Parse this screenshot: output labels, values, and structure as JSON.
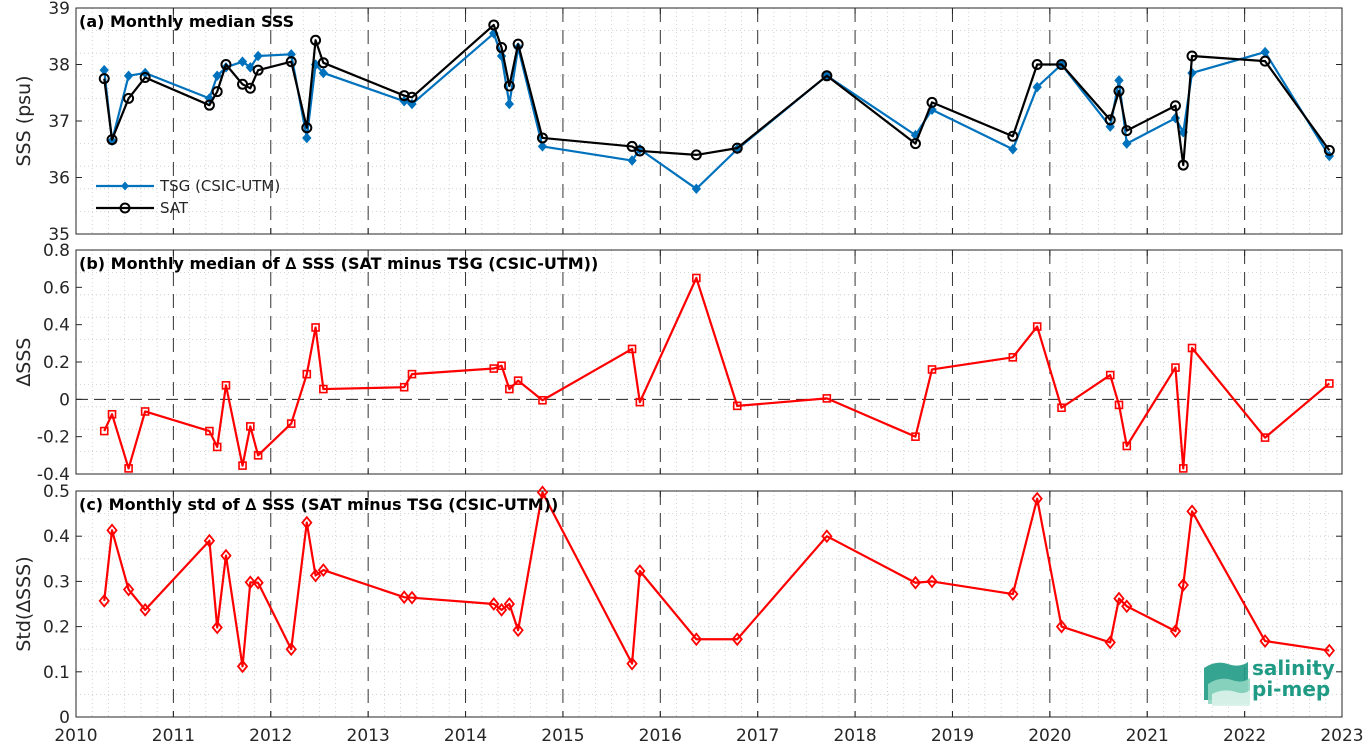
{
  "colors": {
    "tsg": "#0072BD",
    "sat": "#000000",
    "delta": "#ff0000",
    "logo": "#1f9a84"
  },
  "x_axis": {
    "ticks": [
      2010,
      2011,
      2012,
      2013,
      2014,
      2015,
      2016,
      2017,
      2018,
      2019,
      2020,
      2021,
      2022,
      2023
    ],
    "xlim": [
      2010,
      2023
    ]
  },
  "logo": {
    "line1": "salinity",
    "line2": "pi-mep"
  },
  "chart_data": [
    {
      "type": "line",
      "title": "(a) Monthly median SSS",
      "ylabel": "SSS (psu)",
      "ylim": [
        35,
        39
      ],
      "yticks": [
        35,
        36,
        37,
        38,
        39
      ],
      "grid": true,
      "legend": "bottom-left",
      "series": [
        {
          "name": "TSG (CSIC-UTM)",
          "color": "#0072BD",
          "marker": "diamond",
          "x": [
            2010.29,
            2010.37,
            2010.54,
            2010.71,
            2011.37,
            2011.45,
            2011.54,
            2011.71,
            2011.79,
            2011.87,
            2012.21,
            2012.37,
            2012.46,
            2012.54,
            2013.37,
            2013.45,
            2014.29,
            2014.37,
            2014.45,
            2014.54,
            2014.79,
            2015.71,
            2015.79,
            2016.37,
            2016.79,
            2017.71,
            2018.62,
            2018.79,
            2019.62,
            2019.87,
            2020.12,
            2020.62,
            2020.71,
            2020.79,
            2021.29,
            2021.37,
            2021.46,
            2022.21,
            2022.87
          ],
          "y": [
            37.9,
            36.65,
            37.8,
            37.85,
            37.4,
            37.8,
            37.95,
            38.05,
            37.95,
            38.15,
            38.18,
            36.7,
            38.0,
            37.85,
            37.35,
            37.3,
            38.55,
            38.15,
            37.3,
            38.3,
            36.55,
            36.3,
            36.5,
            35.8,
            36.5,
            37.8,
            36.75,
            37.2,
            36.5,
            37.6,
            38.0,
            36.9,
            37.72,
            36.6,
            37.05,
            36.8,
            37.85,
            38.22,
            36.38
          ]
        },
        {
          "name": "SAT",
          "color": "#000000",
          "marker": "circle",
          "x": [
            2010.29,
            2010.37,
            2010.54,
            2010.71,
            2011.37,
            2011.45,
            2011.54,
            2011.71,
            2011.79,
            2011.87,
            2012.21,
            2012.37,
            2012.46,
            2012.54,
            2013.37,
            2013.45,
            2014.29,
            2014.37,
            2014.45,
            2014.54,
            2014.79,
            2015.71,
            2015.79,
            2016.37,
            2016.79,
            2017.71,
            2018.62,
            2018.79,
            2019.62,
            2019.87,
            2020.12,
            2020.62,
            2020.71,
            2020.79,
            2021.29,
            2021.37,
            2021.46,
            2022.21,
            2022.87
          ],
          "y": [
            37.75,
            36.67,
            37.4,
            37.77,
            37.28,
            37.52,
            38.0,
            37.65,
            37.58,
            37.9,
            38.05,
            36.88,
            38.43,
            38.03,
            37.45,
            37.42,
            38.7,
            38.3,
            37.62,
            38.36,
            36.7,
            36.55,
            36.47,
            36.4,
            36.52,
            37.8,
            36.6,
            37.33,
            36.73,
            38.0,
            38.0,
            37.02,
            37.53,
            36.83,
            37.27,
            36.22,
            38.15,
            38.06,
            36.48
          ]
        }
      ]
    },
    {
      "type": "line",
      "title": "(b) Monthly median of ∆ SSS (SAT minus TSG (CSIC-UTM))",
      "ylabel": "∆SSS",
      "ylim": [
        -0.4,
        0.8
      ],
      "yticks": [
        -0.4,
        -0.2,
        0,
        0.2,
        0.4,
        0.6,
        0.8
      ],
      "ytick_labels": [
        "-0.4",
        "-0.2",
        "0",
        "0.2",
        "0.4",
        "0.6",
        "0.8"
      ],
      "zero_line": true,
      "grid": true,
      "series": [
        {
          "color": "#ff0000",
          "marker": "square",
          "x": [
            2010.29,
            2010.37,
            2010.54,
            2010.71,
            2011.37,
            2011.45,
            2011.54,
            2011.71,
            2011.79,
            2011.87,
            2012.21,
            2012.37,
            2012.46,
            2012.54,
            2013.37,
            2013.45,
            2014.29,
            2014.37,
            2014.45,
            2014.54,
            2014.79,
            2015.71,
            2015.79,
            2016.37,
            2016.79,
            2017.71,
            2018.62,
            2018.79,
            2019.62,
            2019.87,
            2020.12,
            2020.62,
            2020.71,
            2020.79,
            2021.29,
            2021.37,
            2021.46,
            2022.21,
            2022.87
          ],
          "y": [
            -0.17,
            -0.08,
            -0.37,
            -0.065,
            -0.17,
            -0.255,
            0.075,
            -0.355,
            -0.145,
            -0.3,
            -0.13,
            0.135,
            0.385,
            0.055,
            0.065,
            0.135,
            0.165,
            0.18,
            0.055,
            0.1,
            -0.005,
            0.27,
            -0.015,
            0.65,
            -0.035,
            0.005,
            -0.2,
            0.16,
            0.225,
            0.39,
            -0.045,
            0.13,
            -0.03,
            -0.25,
            0.17,
            -0.37,
            0.275,
            -0.205,
            0.085
          ]
        }
      ]
    },
    {
      "type": "line",
      "title": "(c) Monthly std of ∆ SSS (SAT minus TSG (CSIC-UTM))",
      "ylabel": "Std(∆SSS)",
      "ylim": [
        0,
        0.5
      ],
      "yticks": [
        0,
        0.1,
        0.2,
        0.3,
        0.4,
        0.5
      ],
      "ytick_labels": [
        "0",
        "0.1",
        "0.2",
        "0.3",
        "0.4",
        "0.5"
      ],
      "grid": true,
      "series": [
        {
          "color": "#ff0000",
          "marker": "diamond-open",
          "x": [
            2010.29,
            2010.37,
            2010.54,
            2010.71,
            2011.37,
            2011.45,
            2011.54,
            2011.71,
            2011.79,
            2011.87,
            2012.21,
            2012.37,
            2012.46,
            2012.54,
            2013.37,
            2013.45,
            2014.29,
            2014.37,
            2014.45,
            2014.54,
            2014.79,
            2015.71,
            2015.79,
            2016.37,
            2016.79,
            2017.71,
            2018.62,
            2018.79,
            2019.62,
            2019.87,
            2020.12,
            2020.62,
            2020.71,
            2020.79,
            2021.29,
            2021.37,
            2021.46,
            2022.21,
            2022.87
          ],
          "y": [
            0.257,
            0.413,
            0.282,
            0.237,
            0.39,
            0.198,
            0.357,
            0.112,
            0.298,
            0.297,
            0.15,
            0.43,
            0.313,
            0.325,
            0.265,
            0.264,
            0.25,
            0.237,
            0.25,
            0.192,
            0.497,
            0.118,
            0.323,
            0.172,
            0.172,
            0.4,
            0.297,
            0.3,
            0.272,
            0.483,
            0.2,
            0.165,
            0.262,
            0.245,
            0.19,
            0.292,
            0.455,
            0.168,
            0.147
          ]
        }
      ]
    }
  ]
}
